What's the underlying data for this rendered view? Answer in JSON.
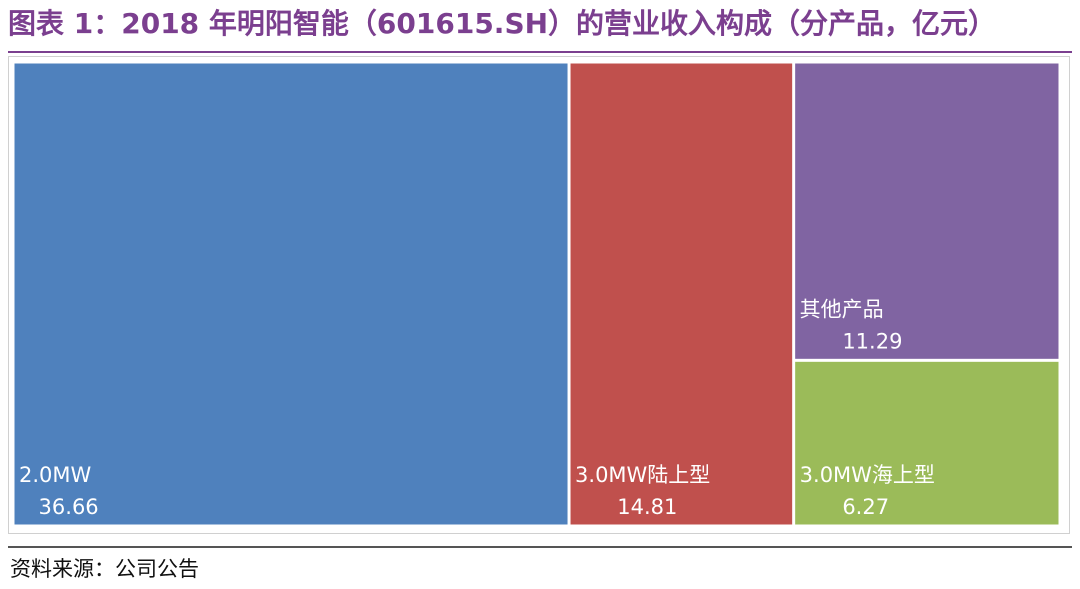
{
  "title": "图表 1：2018 年明阳智能（601615.SH）的营业收入构成（分产品，亿元）",
  "source": "资料来源：公司公告",
  "colors": {
    "title": "#7b3f8f",
    "rule": "#7b3f8f",
    "cell_text": "#ffffff"
  },
  "chart_data": {
    "type": "treemap",
    "unit": "亿元",
    "items": [
      {
        "name": "2.0MW",
        "value": 36.66,
        "color": "#4f81bd"
      },
      {
        "name": "3.0MW陆上型",
        "value": 14.81,
        "color": "#c0504d"
      },
      {
        "name": "其他产品",
        "value": 11.29,
        "color": "#8064a2"
      },
      {
        "name": "3.0MW海上型",
        "value": 6.27,
        "color": "#9bbb59"
      }
    ]
  }
}
